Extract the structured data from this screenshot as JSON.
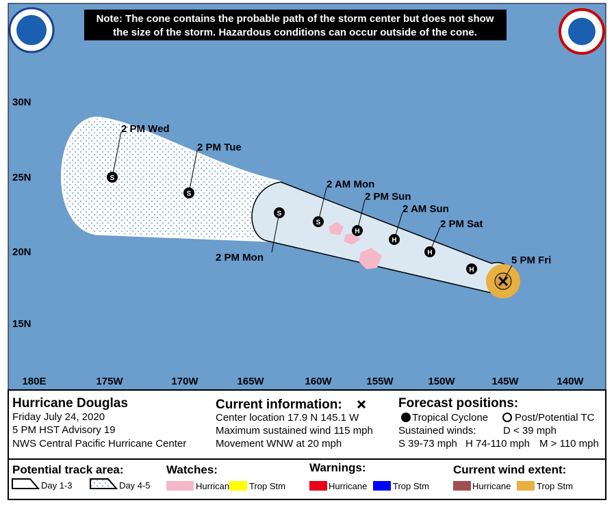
{
  "note": [
    "Note: The cone contains the probable path of the storm center but does not show",
    "the size of the storm. Hazardous conditions can occur outside of the cone."
  ],
  "latitudes": [
    "30N",
    "25N",
    "20N",
    "15N"
  ],
  "longitudes": [
    "180E",
    "175W",
    "170W",
    "165W",
    "160W",
    "155W",
    "150W",
    "145W",
    "140W"
  ],
  "forecast_points": [
    {
      "symbol": "H",
      "label": null
    },
    {
      "symbol": "H",
      "label": "2 PM Sat"
    },
    {
      "symbol": "H",
      "label": "2 AM Sun"
    },
    {
      "symbol": "H",
      "label": "2 PM Sun"
    },
    {
      "symbol": "S",
      "label": "2 AM Mon"
    },
    {
      "symbol": "S",
      "label": "2 PM Mon"
    },
    {
      "symbol": "S",
      "label": "2 PM Tue"
    },
    {
      "symbol": "S",
      "label": "2 PM Wed"
    }
  ],
  "current_label": "5 PM Fri",
  "storm": {
    "name": "Hurricane Douglas",
    "lines": [
      "Friday July 24, 2020",
      "5 PM HST Advisory 19",
      "NWS Central Pacific Hurricane Center"
    ]
  },
  "current_information": {
    "title": "Current information:",
    "lines": [
      "Center location 17.9 N 145.1 W",
      "Maximum sustained wind 115 mph",
      "Movement WNW at 20 mph"
    ]
  },
  "forecast_positions": {
    "title": "Forecast positions:",
    "tropical_cyclone": "Tropical Cyclone",
    "post_tc": "Post/Potential TC",
    "sustained_winds": "Sustained winds:",
    "d": "D < 39 mph",
    "s": "S 39-73 mph",
    "h": "H 74-110 mph",
    "m": "M > 110 mph"
  },
  "legend": {
    "track_title": "Potential track area:",
    "day13": "Day 1-3",
    "day45": "Day 4-5",
    "watches": "Watches:",
    "watch_hurricane": "Hurricane",
    "watch_trop": "Trop Stm",
    "warnings": "Warnings:",
    "warn_hurricane": "Hurricane",
    "warn_trop": "Trop Stm",
    "wind": "Current wind extent:",
    "wind_hurricane": "Hurricane",
    "wind_trop": "Trop Stm"
  }
}
